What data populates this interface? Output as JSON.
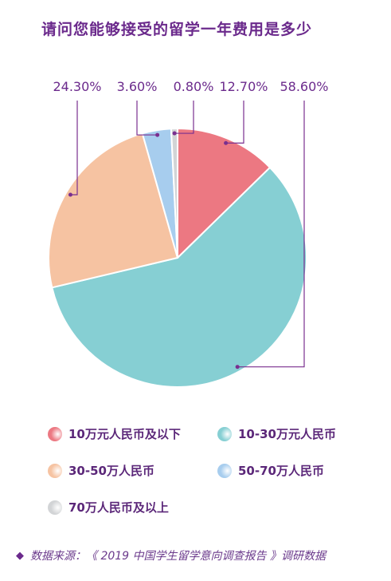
{
  "chart_data": {
    "type": "pie",
    "title": "请问您能够接受的留学一年费用是多少",
    "slices": [
      {
        "label": "10万元人民币及以下",
        "value": 12.7,
        "value_label": "12.70%",
        "color": "#ec7882"
      },
      {
        "label": "10-30万元人民币",
        "value": 58.6,
        "value_label": "58.60%",
        "color": "#86cfd3"
      },
      {
        "label": "30-50万人民币",
        "value": 24.3,
        "value_label": "24.30%",
        "color": "#f6c3a2"
      },
      {
        "label": "50-70万人民币",
        "value": 3.6,
        "value_label": "3.60%",
        "color": "#a7cdee"
      },
      {
        "label": "70万人民币及以上",
        "value": 0.8,
        "value_label": "0.80%",
        "color": "#d2d4d6"
      }
    ],
    "legend": {
      "placement": "bottom",
      "columns": 2
    }
  },
  "source": {
    "icon": "diamond-icon",
    "text": "数据来源：《 2019 中国学生留学意向调查报告 》调研数据"
  },
  "colors": {
    "title": "#6b2a8c",
    "leader_line": "#7a2f8f",
    "label": "#6b2a8c"
  }
}
